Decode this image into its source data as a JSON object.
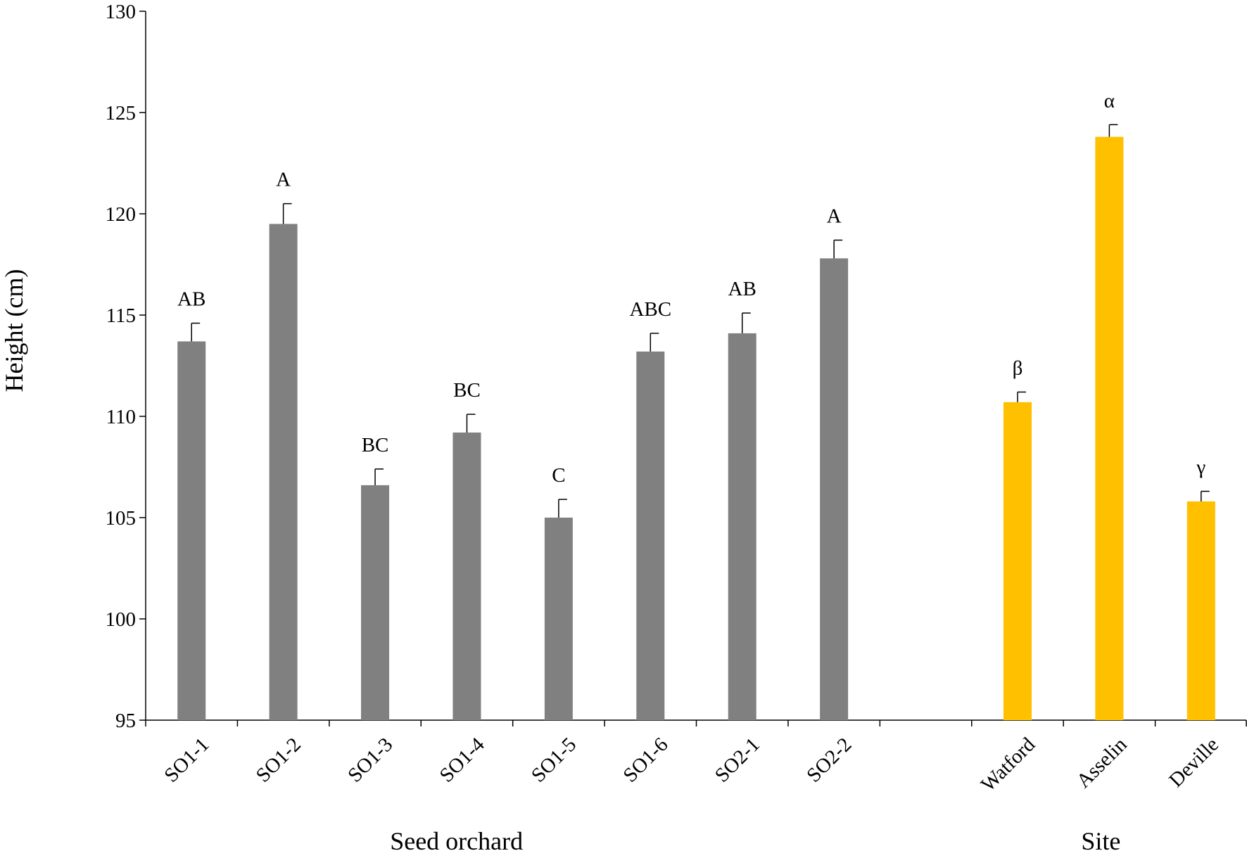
{
  "chart_data": {
    "type": "bar",
    "title": "",
    "ylabel": "Height (cm)",
    "ylim": [
      95,
      130
    ],
    "yticks": [
      95,
      100,
      105,
      110,
      115,
      120,
      125,
      130
    ],
    "grid": false,
    "groups": [
      {
        "label": "Seed orchard",
        "color": "#808080"
      },
      {
        "label": "Site",
        "color": "#FFC000"
      }
    ],
    "categories": [
      "SO1-1",
      "SO1-2",
      "SO1-3",
      "SO1-4",
      "SO1-5",
      "SO1-6",
      "SO2-1",
      "SO2-2",
      "",
      "Watford",
      "Asselin",
      "Deville"
    ],
    "values": [
      113.7,
      119.5,
      106.6,
      109.2,
      105.0,
      113.2,
      114.1,
      117.8,
      null,
      110.7,
      123.8,
      105.8
    ],
    "errors": [
      0.9,
      1.0,
      0.8,
      0.9,
      0.9,
      0.9,
      1.0,
      0.9,
      null,
      0.5,
      0.6,
      0.5
    ],
    "group_index": [
      0,
      0,
      0,
      0,
      0,
      0,
      0,
      0,
      null,
      1,
      1,
      1
    ],
    "significance": [
      "AB",
      "A",
      "BC",
      "BC",
      "C",
      "ABC",
      "AB",
      "A",
      "",
      "β",
      "α",
      "γ"
    ]
  }
}
